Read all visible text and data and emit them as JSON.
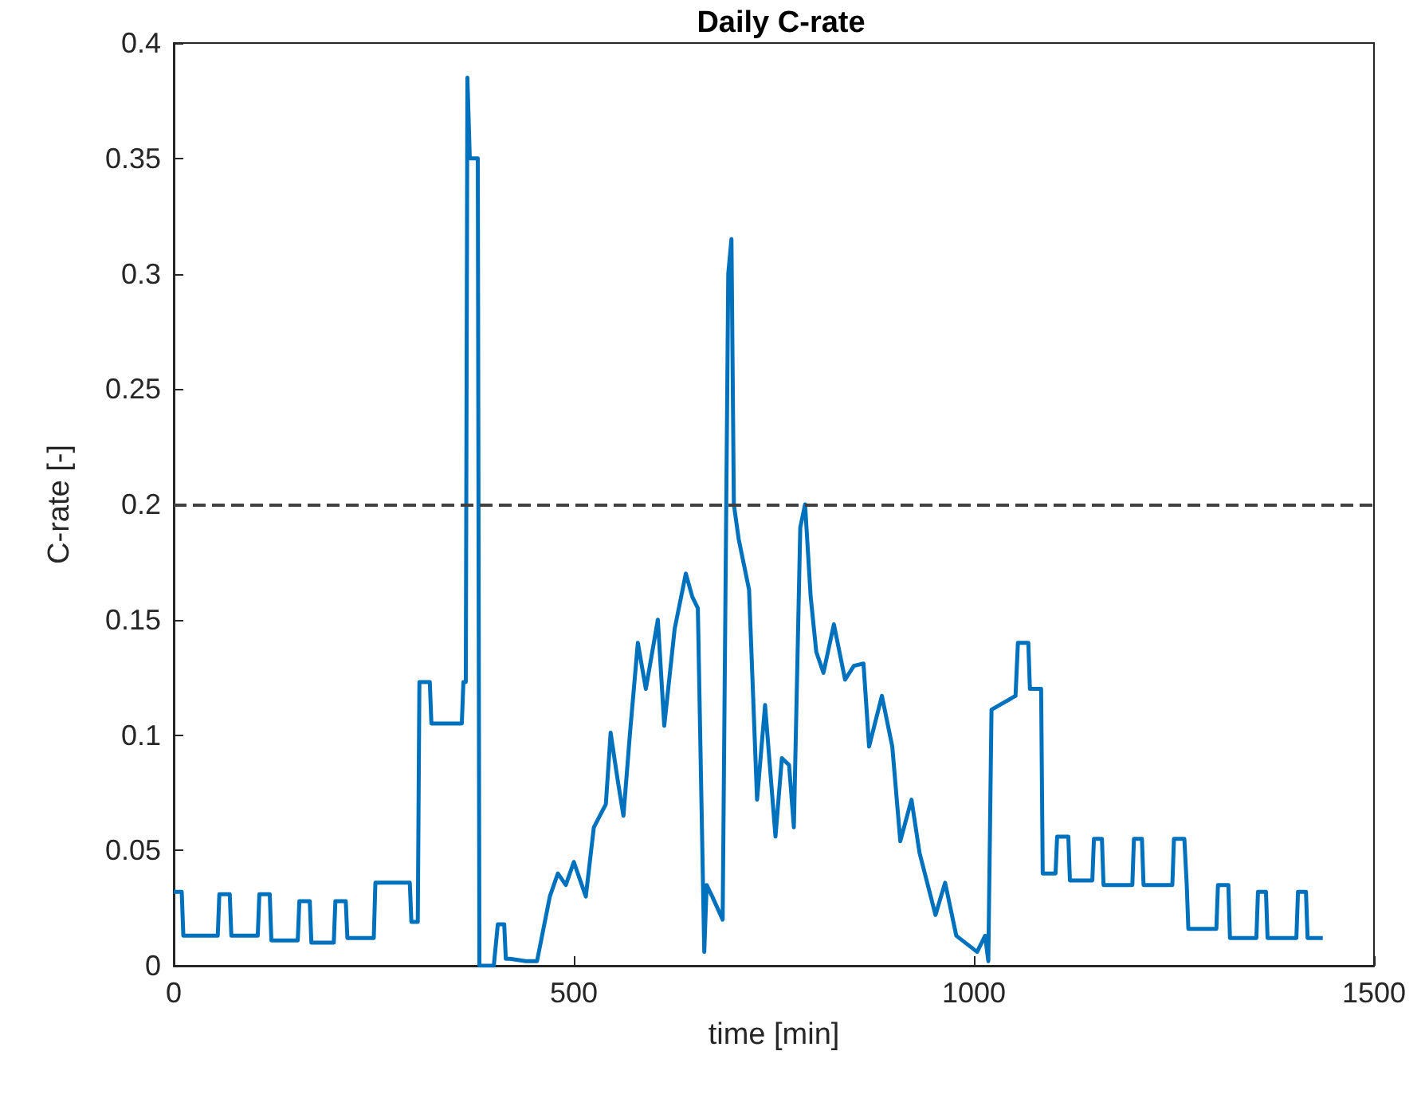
{
  "chart_data": {
    "type": "line",
    "title": "Daily C-rate",
    "xlabel": "time [min]",
    "ylabel": "C-rate [-]",
    "xlim": [
      0,
      1500
    ],
    "xticks": [
      0,
      500,
      1000,
      1500
    ],
    "ylim": [
      0,
      0.4
    ],
    "yticks": [
      0,
      0.05,
      0.1,
      0.15,
      0.2,
      0.25,
      0.3,
      0.35,
      0.4
    ],
    "marker": "none",
    "line_style": "solid",
    "ref_lines": [
      {
        "axis": "y",
        "value": 0.2,
        "color": "#404040",
        "line_style": "dashed"
      }
    ],
    "series": [
      {
        "color": "#0072bd",
        "x": [
          0,
          10,
          12,
          55,
          57,
          70,
          72,
          105,
          107,
          120,
          122,
          155,
          157,
          170,
          172,
          200,
          202,
          215,
          217,
          250,
          252,
          295,
          297,
          305,
          307,
          320,
          322,
          360,
          362,
          365,
          367,
          370,
          378,
          380,
          382,
          400,
          405,
          407,
          413,
          415,
          420,
          440,
          454,
          470,
          480,
          490,
          500,
          515,
          525,
          540,
          546,
          555,
          562,
          570,
          580,
          590,
          605,
          613,
          626,
          640,
          648,
          655,
          663,
          666,
          673,
          686,
          693,
          697,
          700,
          706,
          719,
          729,
          739,
          752,
          760,
          769,
          775,
          783,
          789,
          796,
          803,
          812,
          825,
          839,
          850,
          862,
          869,
          885,
          898,
          908,
          922,
          932,
          952,
          964,
          978,
          1004,
          1014,
          1018,
          1022,
          1052,
          1055,
          1068,
          1070,
          1084,
          1086,
          1102,
          1104,
          1118,
          1120,
          1148,
          1150,
          1160,
          1162,
          1198,
          1200,
          1210,
          1212,
          1248,
          1250,
          1263,
          1266,
          1268,
          1303,
          1305,
          1318,
          1320,
          1353,
          1355,
          1365,
          1367,
          1403,
          1405,
          1415,
          1417,
          1436
        ],
        "values": [
          0.032,
          0.032,
          0.013,
          0.013,
          0.031,
          0.031,
          0.013,
          0.013,
          0.031,
          0.031,
          0.011,
          0.011,
          0.028,
          0.028,
          0.01,
          0.01,
          0.028,
          0.028,
          0.012,
          0.012,
          0.036,
          0.036,
          0.019,
          0.019,
          0.123,
          0.123,
          0.105,
          0.105,
          0.123,
          0.123,
          0.385,
          0.35,
          0.35,
          0.35,
          0,
          0,
          0.018,
          0.018,
          0.018,
          0.003,
          0.003,
          0.002,
          0.002,
          0.03,
          0.04,
          0.035,
          0.045,
          0.03,
          0.06,
          0.07,
          0.101,
          0.08,
          0.065,
          0.1,
          0.14,
          0.12,
          0.15,
          0.104,
          0.146,
          0.17,
          0.16,
          0.155,
          0.006,
          0.035,
          0.03,
          0.02,
          0.3,
          0.315,
          0.2,
          0.185,
          0.163,
          0.072,
          0.113,
          0.056,
          0.09,
          0.087,
          0.06,
          0.19,
          0.2,
          0.16,
          0.136,
          0.127,
          0.148,
          0.124,
          0.13,
          0.131,
          0.095,
          0.117,
          0.095,
          0.054,
          0.072,
          0.049,
          0.022,
          0.036,
          0.013,
          0.006,
          0.013,
          0.002,
          0.111,
          0.117,
          0.14,
          0.14,
          0.12,
          0.12,
          0.04,
          0.04,
          0.056,
          0.056,
          0.037,
          0.037,
          0.055,
          0.055,
          0.035,
          0.035,
          0.055,
          0.055,
          0.035,
          0.035,
          0.055,
          0.055,
          0.035,
          0.016,
          0.016,
          0.035,
          0.035,
          0.012,
          0.012,
          0.032,
          0.032,
          0.012,
          0.012,
          0.032,
          0.032,
          0.012,
          0.012
        ]
      }
    ]
  }
}
